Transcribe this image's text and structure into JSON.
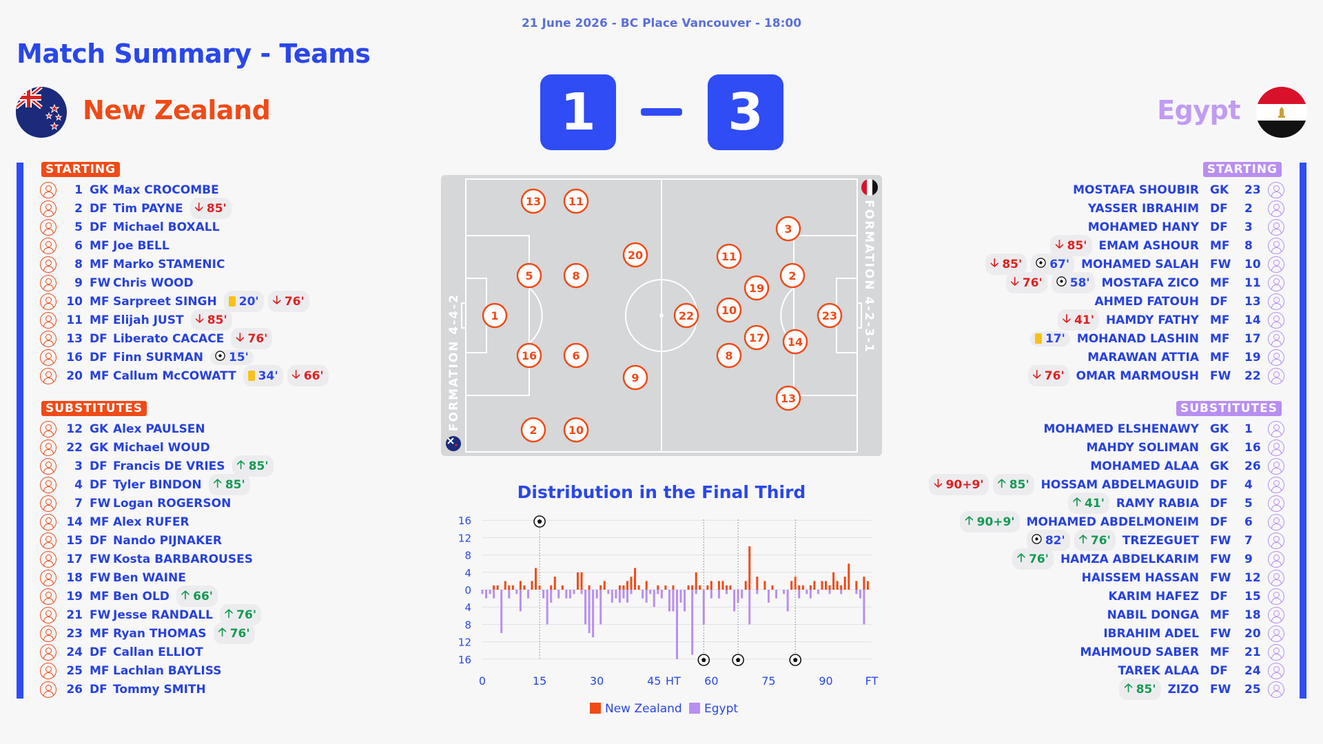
{
  "header": {
    "date_line": "21 June 2026 - BC Place Vancouver - 18:00",
    "title": "Match Summary - Teams"
  },
  "home": {
    "name": "New Zealand",
    "score": "1",
    "starting_label": "STARTING",
    "subs_label": "SUBSTITUTES",
    "formation": "FORMATION 4-4-2",
    "starting": [
      {
        "num": "1",
        "pos": "GK",
        "name": "Max CROCOMBE",
        "events": []
      },
      {
        "num": "2",
        "pos": "DF",
        "name": "Tim PAYNE",
        "events": [
          {
            "type": "out",
            "t": "85'"
          }
        ]
      },
      {
        "num": "5",
        "pos": "DF",
        "name": "Michael BOXALL",
        "events": []
      },
      {
        "num": "6",
        "pos": "MF",
        "name": "Joe BELL",
        "events": []
      },
      {
        "num": "8",
        "pos": "MF",
        "name": "Marko STAMENIC",
        "events": []
      },
      {
        "num": "9",
        "pos": "FW",
        "name": "Chris WOOD",
        "events": []
      },
      {
        "num": "10",
        "pos": "MF",
        "name": "Sarpreet SINGH",
        "events": [
          {
            "type": "yellow",
            "t": "20'"
          },
          {
            "type": "out",
            "t": "76'"
          }
        ]
      },
      {
        "num": "11",
        "pos": "MF",
        "name": "Elijah JUST",
        "events": [
          {
            "type": "out",
            "t": "85'"
          }
        ]
      },
      {
        "num": "13",
        "pos": "DF",
        "name": "Liberato CACACE",
        "events": [
          {
            "type": "out",
            "t": "76'"
          }
        ]
      },
      {
        "num": "16",
        "pos": "DF",
        "name": "Finn SURMAN",
        "events": [
          {
            "type": "goal",
            "t": "15'"
          }
        ]
      },
      {
        "num": "20",
        "pos": "MF",
        "name": "Callum McCOWATT",
        "events": [
          {
            "type": "yellow",
            "t": "34'"
          },
          {
            "type": "out",
            "t": "66'"
          }
        ]
      }
    ],
    "subs": [
      {
        "num": "12",
        "pos": "GK",
        "name": "Alex PAULSEN",
        "events": []
      },
      {
        "num": "22",
        "pos": "GK",
        "name": "Michael WOUD",
        "events": []
      },
      {
        "num": "3",
        "pos": "DF",
        "name": "Francis DE VRIES",
        "events": [
          {
            "type": "in",
            "t": "85'"
          }
        ]
      },
      {
        "num": "4",
        "pos": "DF",
        "name": "Tyler BINDON",
        "events": [
          {
            "type": "in",
            "t": "85'"
          }
        ]
      },
      {
        "num": "7",
        "pos": "FW",
        "name": "Logan ROGERSON",
        "events": []
      },
      {
        "num": "14",
        "pos": "MF",
        "name": "Alex RUFER",
        "events": []
      },
      {
        "num": "15",
        "pos": "DF",
        "name": "Nando PIJNAKER",
        "events": []
      },
      {
        "num": "17",
        "pos": "FW",
        "name": "Kosta BARBAROUSES",
        "events": []
      },
      {
        "num": "18",
        "pos": "FW",
        "name": "Ben WAINE",
        "events": []
      },
      {
        "num": "19",
        "pos": "MF",
        "name": "Ben OLD",
        "events": [
          {
            "type": "in",
            "t": "66'"
          }
        ]
      },
      {
        "num": "21",
        "pos": "FW",
        "name": "Jesse RANDALL",
        "events": [
          {
            "type": "in",
            "t": "76'"
          }
        ]
      },
      {
        "num": "23",
        "pos": "MF",
        "name": "Ryan THOMAS",
        "events": [
          {
            "type": "in",
            "t": "76'"
          }
        ]
      },
      {
        "num": "24",
        "pos": "DF",
        "name": "Callan ELLIOT",
        "events": []
      },
      {
        "num": "25",
        "pos": "MF",
        "name": "Lachlan BAYLISS",
        "events": []
      },
      {
        "num": "26",
        "pos": "DF",
        "name": "Tommy SMITH",
        "events": []
      }
    ]
  },
  "away": {
    "name": "Egypt",
    "score": "3",
    "starting_label": "STARTING",
    "subs_label": "SUBSTITUTES",
    "formation": "FORMATION 4-2-3-1",
    "starting": [
      {
        "num": "23",
        "pos": "GK",
        "name": "MOSTAFA SHOUBIR",
        "events": []
      },
      {
        "num": "2",
        "pos": "DF",
        "name": "YASSER IBRAHIM",
        "events": []
      },
      {
        "num": "3",
        "pos": "DF",
        "name": "MOHAMED HANY",
        "events": []
      },
      {
        "num": "8",
        "pos": "MF",
        "name": "EMAM ASHOUR",
        "events": [
          {
            "type": "out",
            "t": "85'"
          }
        ]
      },
      {
        "num": "10",
        "pos": "FW",
        "name": "MOHAMED SALAH",
        "events": [
          {
            "type": "goal",
            "t": "67'"
          },
          {
            "type": "out",
            "t": "85'"
          }
        ]
      },
      {
        "num": "11",
        "pos": "MF",
        "name": "MOSTAFA ZICO",
        "events": [
          {
            "type": "goal",
            "t": "58'"
          },
          {
            "type": "out",
            "t": "76'"
          }
        ]
      },
      {
        "num": "13",
        "pos": "DF",
        "name": "AHMED FATOUH",
        "events": []
      },
      {
        "num": "14",
        "pos": "MF",
        "name": "HAMDY FATHY",
        "events": [
          {
            "type": "out",
            "t": "41'"
          }
        ]
      },
      {
        "num": "17",
        "pos": "MF",
        "name": "MOHANAD LASHIN",
        "events": [
          {
            "type": "yellow",
            "t": "17'"
          }
        ]
      },
      {
        "num": "19",
        "pos": "MF",
        "name": "MARAWAN ATTIA",
        "events": []
      },
      {
        "num": "22",
        "pos": "FW",
        "name": "OMAR MARMOUSH",
        "events": [
          {
            "type": "out",
            "t": "76'"
          }
        ]
      }
    ],
    "subs": [
      {
        "num": "1",
        "pos": "GK",
        "name": "MOHAMED ELSHENAWY",
        "events": []
      },
      {
        "num": "16",
        "pos": "GK",
        "name": "MAHDY SOLIMAN",
        "events": []
      },
      {
        "num": "26",
        "pos": "GK",
        "name": "MOHAMED ALAA",
        "events": []
      },
      {
        "num": "4",
        "pos": "DF",
        "name": "HOSSAM ABDELMAGUID",
        "events": [
          {
            "type": "in",
            "t": "85'"
          },
          {
            "type": "out",
            "t": "90+9'"
          }
        ]
      },
      {
        "num": "5",
        "pos": "DF",
        "name": "RAMY RABIA",
        "events": [
          {
            "type": "in",
            "t": "41'"
          }
        ]
      },
      {
        "num": "6",
        "pos": "DF",
        "name": "MOHAMED ABDELMONEIM",
        "events": [
          {
            "type": "in",
            "t": "90+9'"
          }
        ]
      },
      {
        "num": "7",
        "pos": "FW",
        "name": "TREZEGUET",
        "events": [
          {
            "type": "in",
            "t": "76'"
          },
          {
            "type": "goal",
            "t": "82'"
          }
        ]
      },
      {
        "num": "9",
        "pos": "FW",
        "name": "HAMZA ABDELKARIM",
        "events": [
          {
            "type": "in",
            "t": "76'"
          }
        ]
      },
      {
        "num": "12",
        "pos": "FW",
        "name": "HAISSEM HASSAN",
        "events": []
      },
      {
        "num": "15",
        "pos": "DF",
        "name": "KARIM HAFEZ",
        "events": []
      },
      {
        "num": "18",
        "pos": "MF",
        "name": "NABIL DONGA",
        "events": []
      },
      {
        "num": "20",
        "pos": "FW",
        "name": "IBRAHIM ADEL",
        "events": []
      },
      {
        "num": "21",
        "pos": "MF",
        "name": "MAHMOUD SABER",
        "events": []
      },
      {
        "num": "24",
        "pos": "DF",
        "name": "TAREK ALAA",
        "events": []
      },
      {
        "num": "25",
        "pos": "FW",
        "name": "ZIZO",
        "events": [
          {
            "type": "in",
            "t": "85'"
          }
        ]
      }
    ]
  },
  "pitch": {
    "home_numbers": [
      "13",
      "11",
      "5",
      "8",
      "1",
      "20",
      "16",
      "6",
      "9",
      "2",
      "10"
    ],
    "away_numbers": [
      "3",
      "11",
      "2",
      "19",
      "22",
      "10",
      "23",
      "17",
      "14",
      "8",
      "13"
    ]
  },
  "colors": {
    "home": "#f04a16",
    "away": "#b88ff0",
    "accent": "#2f4cf5",
    "title": "#2a47e8",
    "out": "#e02020",
    "in": "#159a52",
    "yellow": "#f7c11a"
  },
  "chart_data": {
    "type": "bar",
    "title": "Distribution in the Final Third",
    "x_tick_labels": [
      "0",
      "15",
      "30",
      "45",
      "HT",
      "60",
      "75",
      "90",
      "FT"
    ],
    "y_tick_labels": [
      "16",
      "12",
      "8",
      "4",
      "0",
      "4",
      "8",
      "12",
      "16"
    ],
    "ylim": [
      -16,
      16
    ],
    "grid": true,
    "legend": "bottom",
    "series": [
      {
        "name": "New Zealand",
        "color": "#f04a16",
        "x": [
          3,
          4,
          6,
          7,
          8,
          10,
          11,
          13,
          14,
          15,
          18,
          19,
          21,
          25,
          26,
          28,
          31,
          32,
          36,
          37,
          38,
          39,
          40,
          41,
          43,
          46,
          48,
          50,
          54,
          55,
          56,
          57,
          59,
          60,
          62,
          63,
          64,
          65,
          69,
          70,
          72,
          74,
          76,
          81,
          82,
          83,
          84,
          86,
          87,
          89,
          90,
          91,
          92,
          93,
          94,
          95,
          96,
          98,
          100,
          101
        ],
        "values": [
          1,
          1,
          2,
          1,
          1,
          2,
          1,
          2,
          5,
          1,
          1,
          3,
          1,
          4,
          4,
          1,
          1,
          2,
          1,
          1,
          2,
          3,
          5,
          1,
          2,
          1,
          1,
          1,
          1,
          1,
          4,
          1,
          1,
          2,
          2,
          2,
          1,
          1,
          2,
          10,
          3,
          2,
          1,
          2,
          3,
          1,
          1,
          1,
          2,
          2,
          2,
          1,
          4,
          2,
          1,
          3,
          6,
          2,
          3,
          2
        ]
      },
      {
        "name": "Egypt",
        "color": "#b88ff0",
        "x": [
          0,
          1,
          2,
          3,
          5,
          7,
          9,
          10,
          12,
          16,
          17,
          18,
          20,
          22,
          23,
          24,
          26,
          27,
          28,
          29,
          30,
          31,
          33,
          34,
          35,
          36,
          37,
          38,
          39,
          42,
          43,
          44,
          45,
          46,
          47,
          49,
          50,
          51,
          52,
          53,
          55,
          56,
          58,
          60,
          62,
          64,
          66,
          67,
          68,
          70,
          72,
          75,
          77,
          79,
          80,
          83,
          85,
          86,
          88,
          91,
          94,
          98,
          99,
          100
        ],
        "values": [
          -1,
          -2,
          -1,
          -2,
          -10,
          -2,
          -1,
          -5,
          -2,
          -2,
          -8,
          -3,
          -2,
          -2,
          -2,
          -1,
          -1,
          -8,
          -10,
          -11,
          -2,
          -8,
          -1,
          -3,
          -2,
          -3,
          -2,
          -3,
          -1,
          -2,
          -3,
          -1,
          -4,
          -1,
          -2,
          -5,
          -5,
          -16,
          -3,
          -5,
          -15,
          -1,
          -8,
          -2,
          -2,
          -1,
          -5,
          -3,
          -2,
          -8,
          -1,
          -3,
          -2,
          -1,
          -5,
          -2,
          -1,
          -2,
          -1,
          -1,
          -1,
          -1,
          -2,
          -8
        ]
      }
    ],
    "goals": {
      "home": [
        15
      ],
      "away": [
        58,
        67,
        82
      ]
    }
  }
}
